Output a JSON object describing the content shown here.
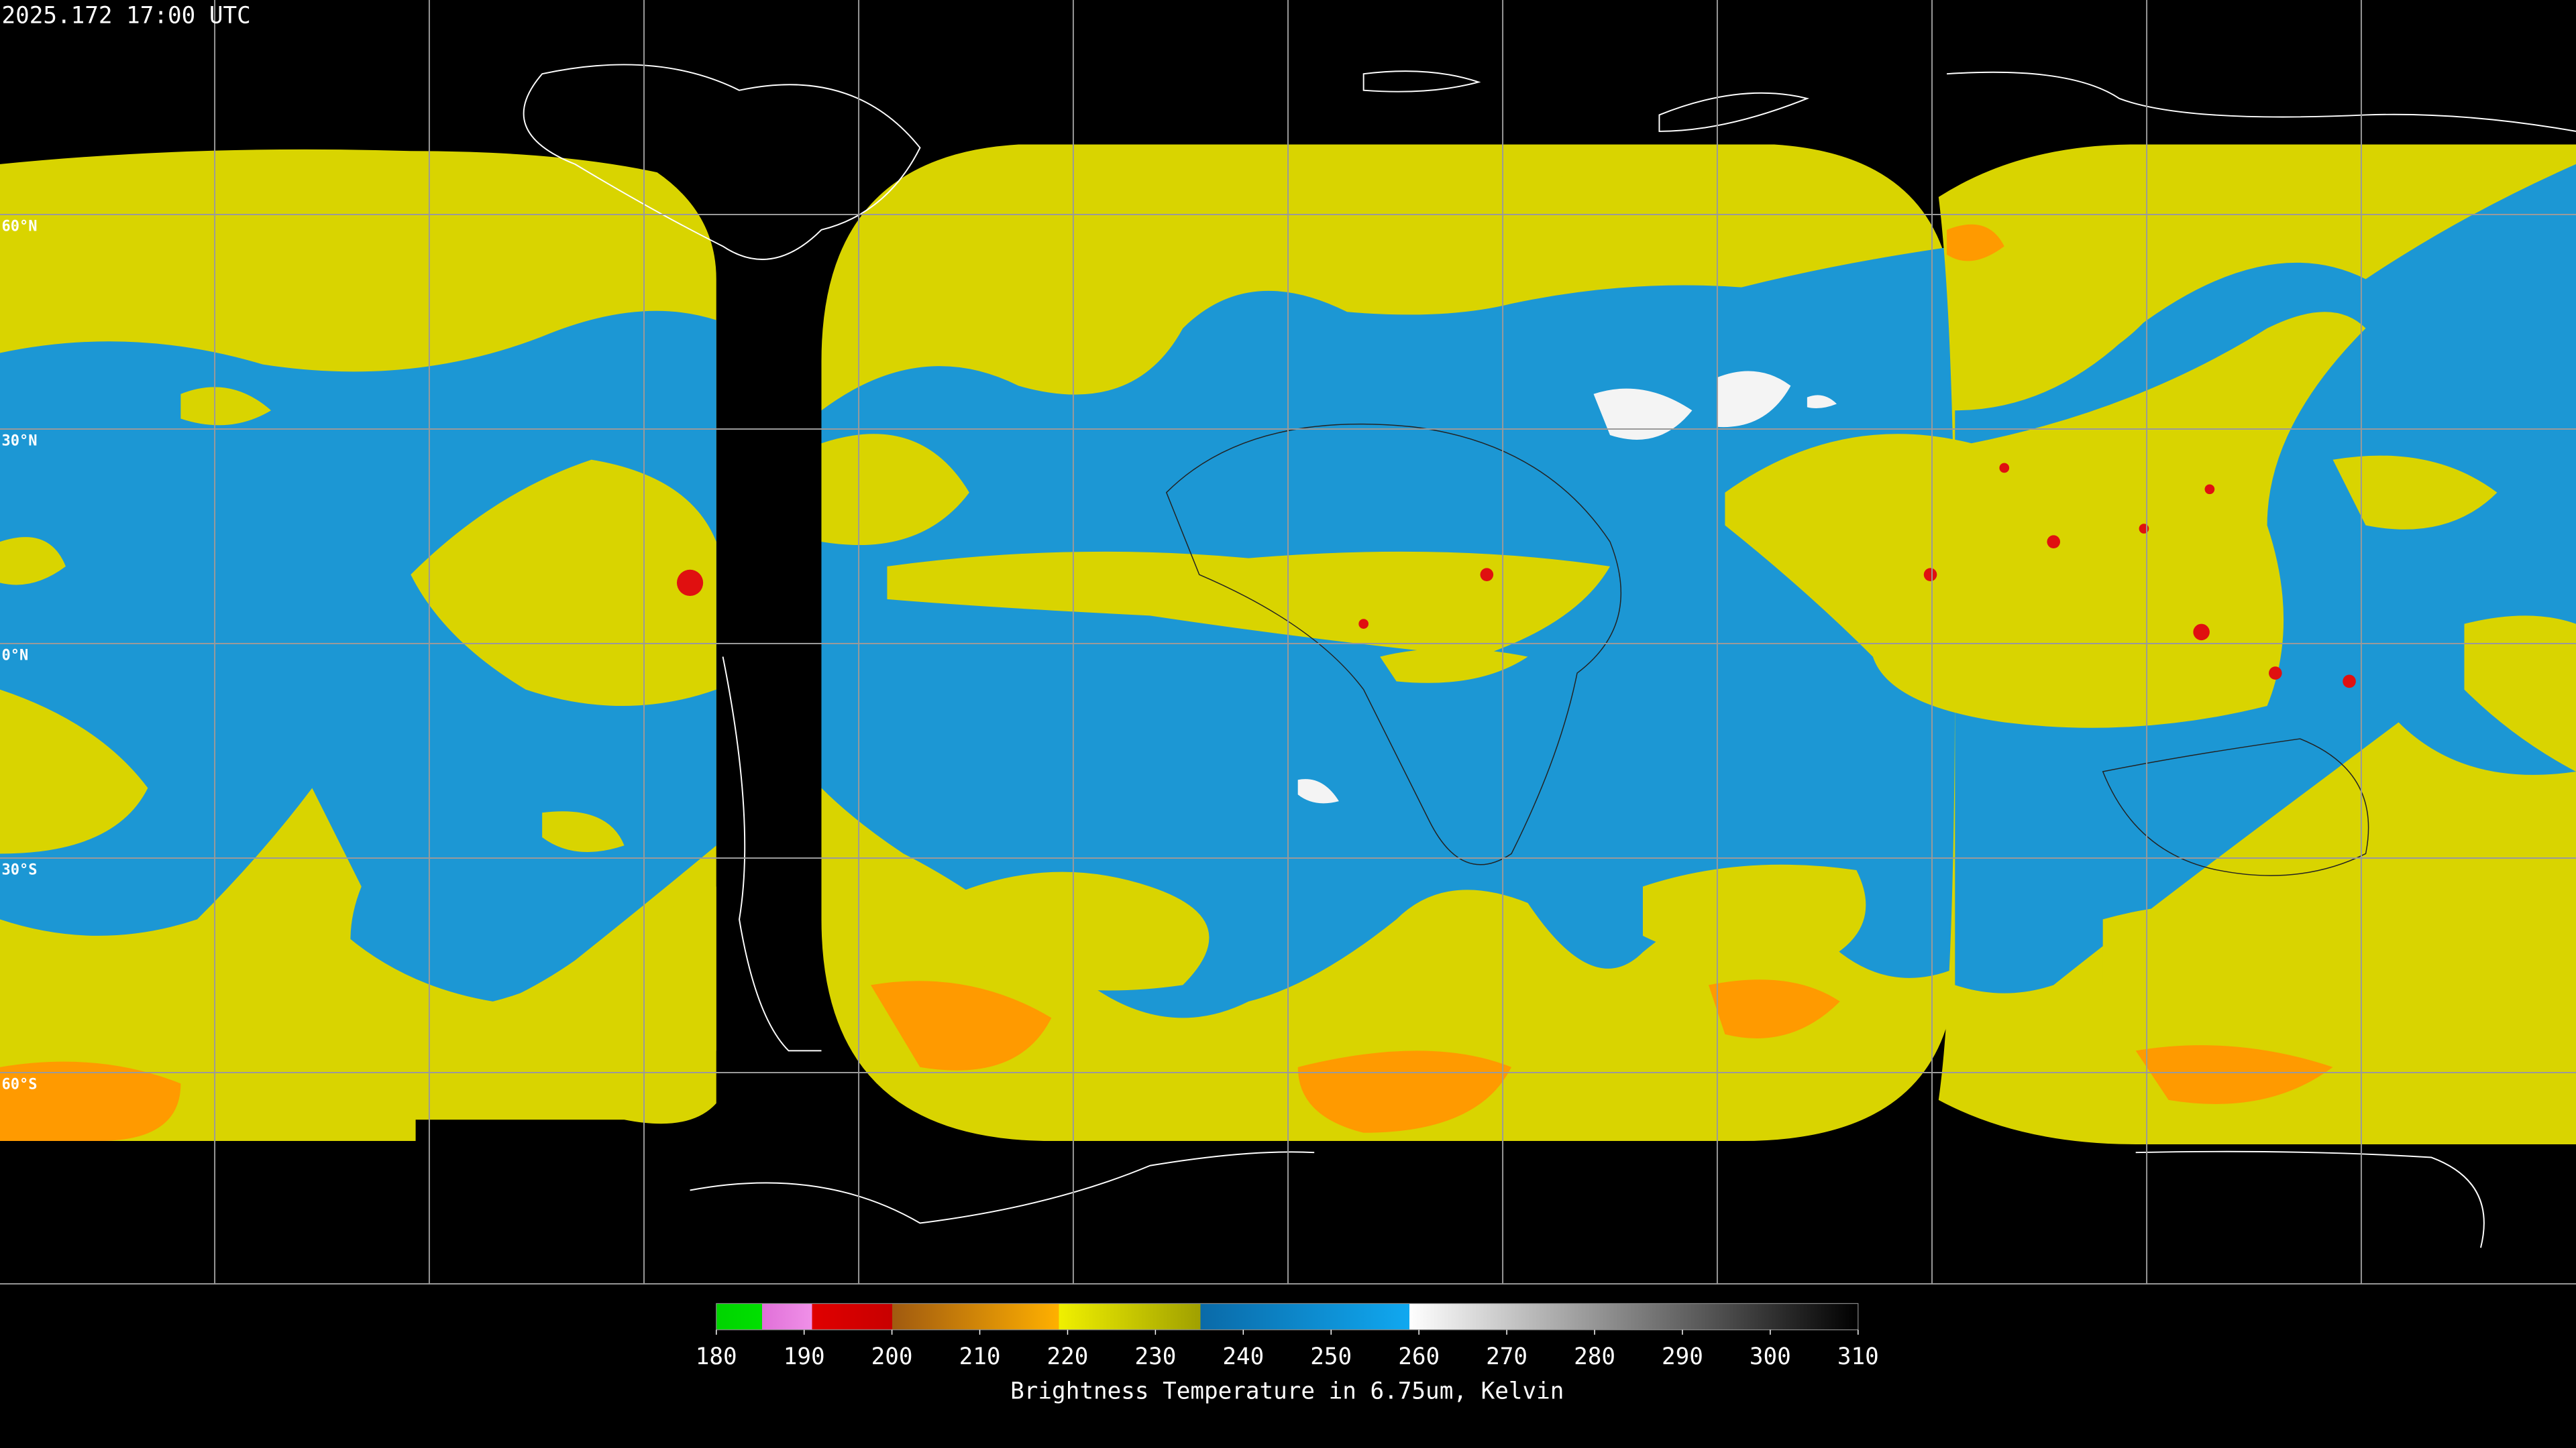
{
  "header": {
    "timestamp": "2025.172 17:00 UTC"
  },
  "map": {
    "latitude_labels": [
      "60°N",
      "30°N",
      "0°N",
      "30°S",
      "60°S"
    ]
  },
  "colorbar": {
    "ticks": [
      180,
      190,
      200,
      210,
      220,
      230,
      240,
      250,
      260,
      270,
      280,
      290,
      300,
      310
    ],
    "title": "Brightness Temperature in 6.75um, Kelvin"
  }
}
